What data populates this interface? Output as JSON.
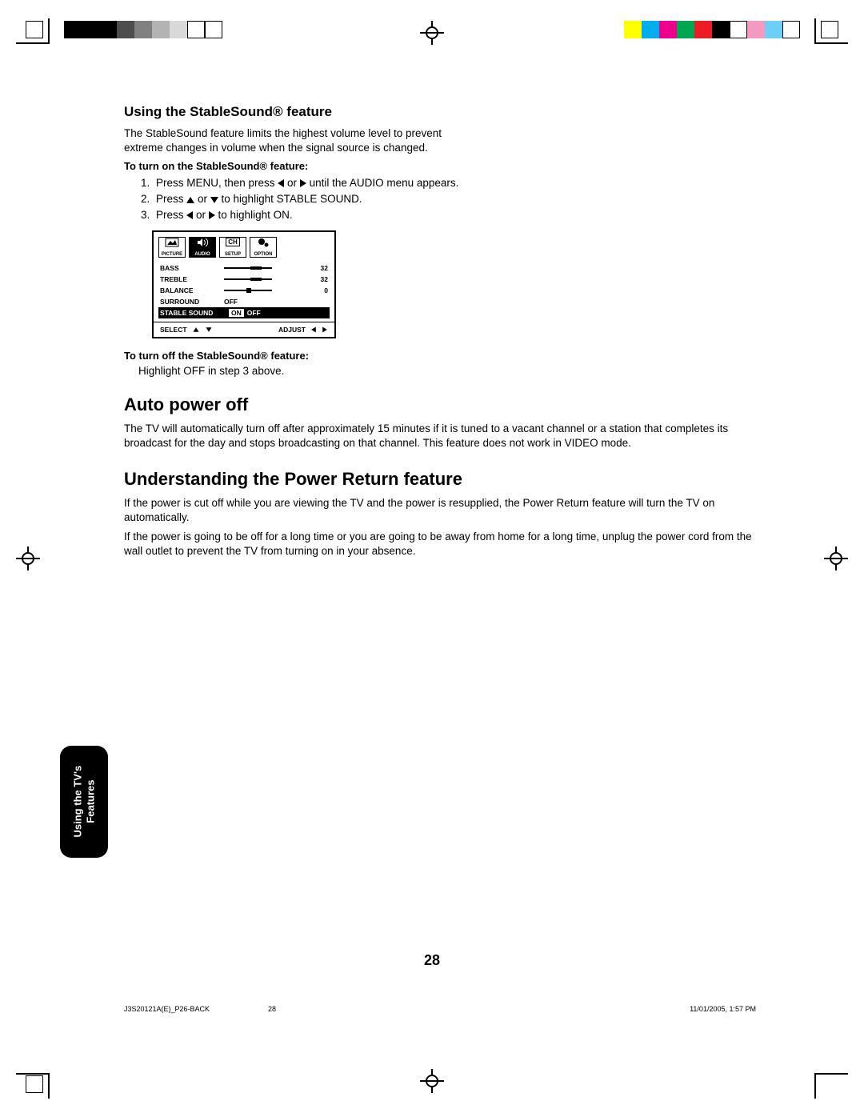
{
  "reg_colors_left": [
    "#000000",
    "#000000",
    "#000000",
    "#4d4d4d",
    "#808080",
    "#b3b3b3",
    "#d9d9d9",
    "#ffffff",
    "#ffffff"
  ],
  "reg_colors_right": [
    "#ffff00",
    "#00aeef",
    "#ec008c",
    "#00a651",
    "#ed1c24",
    "#000000",
    "#ffffff",
    "#f49ac1",
    "#6dcff6",
    "#ffffff"
  ],
  "section1": {
    "heading": "Using the StableSound® feature",
    "intro": "The StableSound feature limits the highest volume level to prevent extreme changes in volume when the signal source is changed.",
    "turnon_label": "To turn on the StableSound® feature:",
    "steps": [
      "Press MENU, then press ◀ or ▶ until the AUDIO menu appears.",
      "Press ▲ or ▼ to highlight STABLE SOUND.",
      "Press ◀ or ▶ to highlight ON."
    ],
    "turnoff_label": "To turn off the StableSound® feature:",
    "turnoff_body": "Highlight OFF in step 3 above."
  },
  "osd": {
    "tabs": [
      "PICTURE",
      "AUDIO",
      "SETUP",
      "OPTION"
    ],
    "active_tab": 1,
    "rows": [
      {
        "label": "BASS",
        "type": "bar",
        "value": 32,
        "thumb_pct": 55
      },
      {
        "label": "TREBLE",
        "type": "bar",
        "value": 32,
        "thumb_pct": 55
      },
      {
        "label": "BALANCE",
        "type": "bar",
        "value": 0,
        "thumb_pct": 50
      },
      {
        "label": "SURROUND",
        "type": "text",
        "text": "OFF"
      },
      {
        "label": "STABLE SOUND",
        "type": "toggle",
        "on": "ON",
        "off": "OFF",
        "selected": "ON"
      }
    ],
    "footer_select": "SELECT",
    "footer_adjust": "ADJUST"
  },
  "section2": {
    "heading": "Auto power off",
    "body": "The TV will automatically turn off after approximately 15 minutes if it is tuned to a vacant channel or a station that completes its broadcast for the day and stops broadcasting on that channel. This feature does not work in VIDEO mode."
  },
  "section3": {
    "heading": "Understanding the Power Return feature",
    "body1": "If the power is cut off while you are viewing the TV and the power is resupplied, the Power Return feature will turn the TV on automatically.",
    "body2": "If the power is going to be off for a long time or you are going to be away from home for a long time, unplug the power cord from the wall outlet to prevent the TV from turning on in your absence."
  },
  "sidetab_line1": "Using the TV's",
  "sidetab_line2": "Features",
  "page_number": "28",
  "footer_left": "J3S20121A(E)_P26-BACK",
  "footer_mid": "28",
  "footer_right": "11/01/2005, 1:57 PM"
}
